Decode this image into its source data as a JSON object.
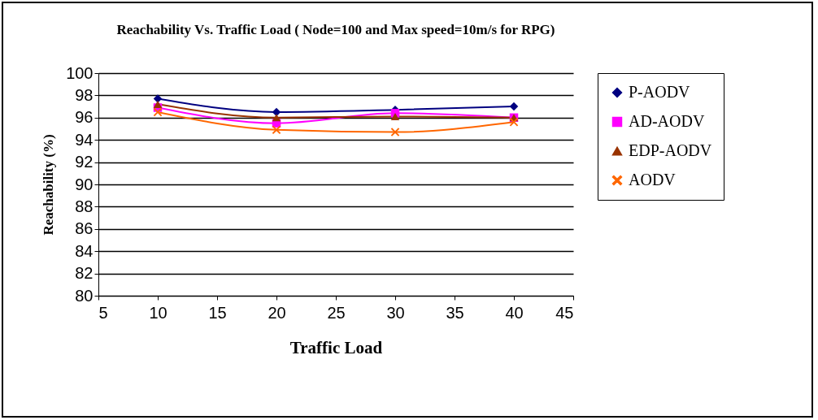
{
  "chart_data": {
    "type": "line",
    "title": "Reachability Vs. Traffic Load ( Node=100 and Max speed=10m/s for RPG)",
    "xlabel": "Traffic Load",
    "ylabel": "Reachability (%)",
    "x": [
      10,
      20,
      30,
      40
    ],
    "series": [
      {
        "name": "P-AODV",
        "color": "#000080",
        "marker": "diamond",
        "values": [
          97.7,
          96.5,
          96.7,
          97.0
        ]
      },
      {
        "name": "AD-AODV",
        "color": "#ff00ff",
        "marker": "square",
        "values": [
          96.9,
          95.5,
          96.4,
          96.0
        ]
      },
      {
        "name": "EDP-AODV",
        "color": "#993300",
        "marker": "triangle",
        "values": [
          97.2,
          96.0,
          96.1,
          96.0
        ]
      },
      {
        "name": "AODV",
        "color": "#ff6600",
        "marker": "cross",
        "values": [
          96.5,
          94.9,
          94.7,
          95.6
        ]
      }
    ],
    "xlim": [
      5,
      45
    ],
    "xticks": [
      5,
      10,
      15,
      20,
      25,
      30,
      35,
      40,
      45
    ],
    "ylim": [
      80,
      100
    ],
    "yticks": [
      80,
      82,
      84,
      86,
      88,
      90,
      92,
      94,
      96,
      98,
      100
    ],
    "grid": "y",
    "legend": "right"
  }
}
